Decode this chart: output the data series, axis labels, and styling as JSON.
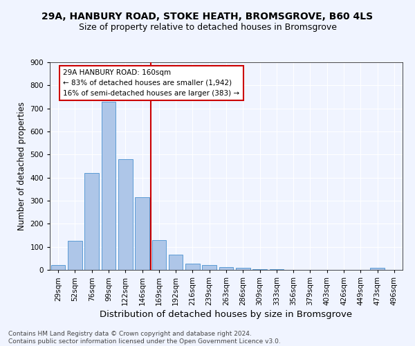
{
  "title": "29A, HANBURY ROAD, STOKE HEATH, BROMSGROVE, B60 4LS",
  "subtitle": "Size of property relative to detached houses in Bromsgrove",
  "xlabel": "Distribution of detached houses by size in Bromsgrove",
  "ylabel": "Number of detached properties",
  "categories": [
    "29sqm",
    "52sqm",
    "76sqm",
    "99sqm",
    "122sqm",
    "146sqm",
    "169sqm",
    "192sqm",
    "216sqm",
    "239sqm",
    "263sqm",
    "286sqm",
    "309sqm",
    "333sqm",
    "356sqm",
    "379sqm",
    "403sqm",
    "426sqm",
    "449sqm",
    "473sqm",
    "496sqm"
  ],
  "values": [
    20,
    125,
    420,
    730,
    480,
    315,
    130,
    65,
    27,
    22,
    12,
    10,
    4,
    3,
    1,
    0,
    0,
    0,
    0,
    8,
    0
  ],
  "bar_color": "#aec6e8",
  "bar_edge_color": "#5b9bd5",
  "vline_x_index": 6,
  "vline_color": "#cc0000",
  "annotation_text": "29A HANBURY ROAD: 160sqm\n← 83% of detached houses are smaller (1,942)\n16% of semi-detached houses are larger (383) →",
  "annotation_box_color": "#ffffff",
  "annotation_box_edge_color": "#cc0000",
  "ylim": [
    0,
    900
  ],
  "yticks": [
    0,
    100,
    200,
    300,
    400,
    500,
    600,
    700,
    800,
    900
  ],
  "footer": "Contains HM Land Registry data © Crown copyright and database right 2024.\nContains public sector information licensed under the Open Government Licence v3.0.",
  "title_fontsize": 10,
  "subtitle_fontsize": 9,
  "xlabel_fontsize": 9.5,
  "ylabel_fontsize": 8.5,
  "tick_fontsize": 7.5,
  "footer_fontsize": 6.5,
  "annotation_fontsize": 7.5,
  "background_color": "#f0f4ff",
  "plot_bg_color": "#f0f4ff",
  "grid_color": "#ffffff"
}
